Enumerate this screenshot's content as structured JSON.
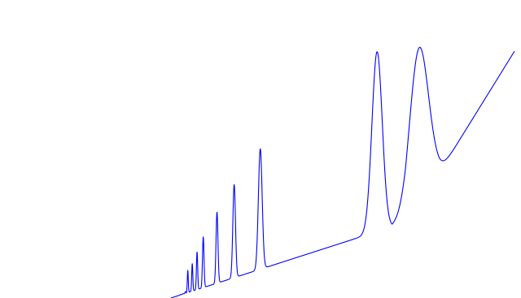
{
  "chart_data": {
    "type": "line",
    "title": "",
    "xlabel": "",
    "ylabel": "",
    "axes_visible": false,
    "grid": false,
    "legend": "none",
    "series_color": "#0000ff",
    "xlim": [
      0,
      100
    ],
    "ylim": [
      0,
      100
    ],
    "baseline": {
      "x_start": 0,
      "y_start": 0,
      "segments": [
        {
          "to_x": 68.3,
          "to_y": 26.0,
          "curve": "linear"
        },
        {
          "to_x": 78.1,
          "to_y": 43.1,
          "curve": "bend",
          "ctrl_x": 70.9,
          "ctrl_y": 33.7
        },
        {
          "to_x": 100,
          "to_y": 84.9,
          "curve": "linear"
        }
      ]
    },
    "series": [
      {
        "peaks": [
          {
            "x": 2.8,
            "height": 1.2,
            "width": 0.12
          },
          {
            "x": 3.5,
            "height": 1.5,
            "width": 0.12
          },
          {
            "x": 4.2,
            "height": 2.2,
            "width": 0.12
          },
          {
            "x": 4.9,
            "height": 9.5,
            "width": 0.14
          },
          {
            "x": 6.2,
            "height": 11.8,
            "width": 0.16
          },
          {
            "x": 7.6,
            "height": 15.8,
            "width": 0.18
          },
          {
            "x": 9.4,
            "height": 21.0,
            "width": 0.22
          },
          {
            "x": 13.4,
            "height": 29.5,
            "width": 0.28
          },
          {
            "x": 18.4,
            "height": 39.0,
            "width": 0.38
          },
          {
            "x": 26.0,
            "height": 51.3,
            "width": 0.55
          },
          {
            "x": 60.0,
            "height": 84.7,
            "width": 1.5
          },
          {
            "x": 72.2,
            "height": 86.0,
            "width": 2.75
          }
        ]
      }
    ]
  }
}
